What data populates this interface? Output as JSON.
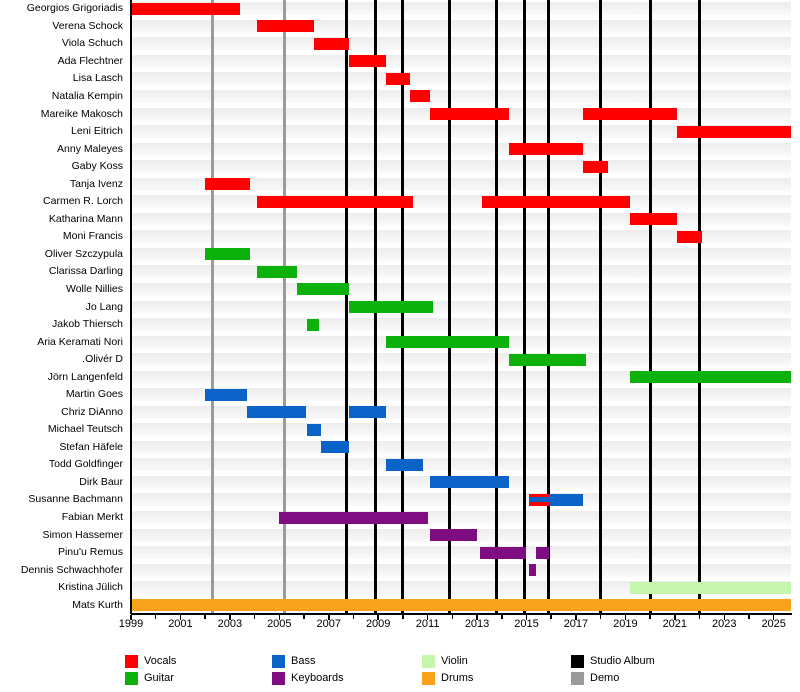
{
  "chart_data": {
    "type": "timeline",
    "description": "Band members timeline (gantt-style) with role-colored bars, studio album and demo release lines",
    "axis": {
      "start": 1999,
      "end": 2025.7,
      "tick_years": [
        1999,
        2001,
        2003,
        2005,
        2007,
        2009,
        2011,
        2013,
        2015,
        2017,
        2019,
        2021,
        2023,
        2025
      ],
      "minor_tick_step": 1
    },
    "colors": {
      "vocals": "#fe0000",
      "guitar": "#0cb10c",
      "bass": "#0b63c8",
      "keyboards": "#7e0d81",
      "violin": "#c6f5ae",
      "drums": "#f9a21b",
      "studio_album": "#000000",
      "demo": "#9b9b9b"
    },
    "legend": [
      {
        "label": "Vocals",
        "key": "vocals"
      },
      {
        "label": "Guitar",
        "key": "guitar"
      },
      {
        "label": "Bass",
        "key": "bass"
      },
      {
        "label": "Keyboards",
        "key": "keyboards"
      },
      {
        "label": "Violin",
        "key": "violin"
      },
      {
        "label": "Drums",
        "key": "drums"
      },
      {
        "label": "Studio Album",
        "key": "studio_album"
      },
      {
        "label": "Demo",
        "key": "demo"
      }
    ],
    "studio_albums": [
      2007.7,
      2008.9,
      2010.0,
      2011.9,
      2013.8,
      2014.9,
      2015.9,
      2018.0,
      2020.0,
      2022.0
    ],
    "demos": [
      2002.3,
      2005.2
    ],
    "members": [
      {
        "name": "Georgios Grigoriadis",
        "segments": [
          {
            "start": 1999.0,
            "end": 2003.4,
            "role": "vocals"
          }
        ]
      },
      {
        "name": "Verena Schock",
        "segments": [
          {
            "start": 2004.1,
            "end": 2006.4,
            "role": "vocals"
          }
        ]
      },
      {
        "name": "Viola Schuch",
        "segments": [
          {
            "start": 2006.4,
            "end": 2007.8,
            "role": "vocals"
          }
        ]
      },
      {
        "name": "Ada Flechtner",
        "segments": [
          {
            "start": 2007.8,
            "end": 2009.3,
            "role": "vocals"
          }
        ]
      },
      {
        "name": "Lisa Lasch",
        "segments": [
          {
            "start": 2009.3,
            "end": 2010.3,
            "role": "vocals"
          }
        ]
      },
      {
        "name": "Natalia Kempin",
        "segments": [
          {
            "start": 2010.3,
            "end": 2011.1,
            "role": "vocals"
          }
        ]
      },
      {
        "name": "Mareike Makosch",
        "segments": [
          {
            "start": 2011.1,
            "end": 2014.3,
            "role": "vocals"
          },
          {
            "start": 2017.3,
            "end": 2021.1,
            "role": "vocals"
          }
        ]
      },
      {
        "name": "Leni Eitrich",
        "segments": [
          {
            "start": 2021.1,
            "end": 2025.7,
            "role": "vocals"
          }
        ]
      },
      {
        "name": "Anny Maleyes",
        "segments": [
          {
            "start": 2014.3,
            "end": 2017.3,
            "role": "vocals"
          }
        ]
      },
      {
        "name": "Gaby Koss",
        "segments": [
          {
            "start": 2017.3,
            "end": 2018.3,
            "role": "vocals"
          }
        ]
      },
      {
        "name": "Tanja Ivenz",
        "segments": [
          {
            "start": 2002.0,
            "end": 2003.8,
            "role": "vocals"
          }
        ]
      },
      {
        "name": "Carmen R. Lorch",
        "segments": [
          {
            "start": 2004.1,
            "end": 2010.4,
            "role": "vocals"
          },
          {
            "start": 2013.2,
            "end": 2019.2,
            "role": "vocals"
          }
        ]
      },
      {
        "name": "Katharina Mann",
        "segments": [
          {
            "start": 2019.2,
            "end": 2021.1,
            "role": "vocals"
          }
        ]
      },
      {
        "name": "Moni Francis",
        "segments": [
          {
            "start": 2021.1,
            "end": 2022.1,
            "role": "vocals"
          }
        ]
      },
      {
        "name": "Oliver Szczypula",
        "segments": [
          {
            "start": 2002.0,
            "end": 2003.8,
            "role": "guitar"
          }
        ]
      },
      {
        "name": "Clarissa Darling",
        "segments": [
          {
            "start": 2004.1,
            "end": 2005.7,
            "role": "guitar"
          }
        ]
      },
      {
        "name": "Wolle Nillies",
        "segments": [
          {
            "start": 2005.7,
            "end": 2007.8,
            "role": "guitar"
          }
        ]
      },
      {
        "name": "Jo Lang",
        "segments": [
          {
            "start": 2007.8,
            "end": 2011.2,
            "role": "guitar"
          }
        ]
      },
      {
        "name": "Jakob Thiersch",
        "segments": [
          {
            "start": 2006.1,
            "end": 2006.6,
            "role": "guitar"
          }
        ]
      },
      {
        "name": "Aria Keramati Nori",
        "segments": [
          {
            "start": 2009.3,
            "end": 2014.3,
            "role": "guitar"
          }
        ]
      },
      {
        "name": "Olivér D.",
        "segments": [
          {
            "start": 2014.3,
            "end": 2017.4,
            "role": "guitar"
          }
        ]
      },
      {
        "name": "Jörn Langenfeld",
        "segments": [
          {
            "start": 2019.2,
            "end": 2025.7,
            "role": "guitar"
          }
        ]
      },
      {
        "name": "Martin Goes",
        "segments": [
          {
            "start": 2002.0,
            "end": 2003.7,
            "role": "bass"
          }
        ]
      },
      {
        "name": "Chriz DiAnno",
        "segments": [
          {
            "start": 2003.7,
            "end": 2006.1,
            "role": "bass"
          },
          {
            "start": 2007.8,
            "end": 2009.3,
            "role": "bass"
          }
        ]
      },
      {
        "name": "Michael Teutsch",
        "segments": [
          {
            "start": 2006.1,
            "end": 2006.7,
            "role": "bass"
          }
        ]
      },
      {
        "name": "Stefan Häfele",
        "segments": [
          {
            "start": 2006.7,
            "end": 2007.8,
            "role": "bass"
          }
        ]
      },
      {
        "name": "Todd Goldfinger",
        "segments": [
          {
            "start": 2009.3,
            "end": 2010.8,
            "role": "bass"
          }
        ]
      },
      {
        "name": "Dirk Baur",
        "segments": [
          {
            "start": 2011.1,
            "end": 2014.3,
            "role": "bass"
          }
        ]
      },
      {
        "name": "Susanne Bachmann",
        "segments": [
          {
            "start": 2015.1,
            "end": 2015.9,
            "role": "vocals",
            "overlay": "bass"
          },
          {
            "start": 2015.9,
            "end": 2017.3,
            "role": "bass"
          }
        ]
      },
      {
        "name": "Fabian Merkt",
        "segments": [
          {
            "start": 2005.0,
            "end": 2011.0,
            "role": "keyboards"
          }
        ]
      },
      {
        "name": "Simon Hassemer",
        "segments": [
          {
            "start": 2011.1,
            "end": 2013.0,
            "role": "keyboards"
          }
        ]
      },
      {
        "name": "Pinu'u Remus",
        "segments": [
          {
            "start": 2013.1,
            "end": 2015.0,
            "role": "keyboards"
          },
          {
            "start": 2015.4,
            "end": 2015.9,
            "role": "keyboards"
          }
        ]
      },
      {
        "name": "Dennis Schwachhofer",
        "segments": [
          {
            "start": 2015.1,
            "end": 2015.4,
            "role": "keyboards"
          }
        ]
      },
      {
        "name": "Kristina Jülich",
        "segments": [
          {
            "start": 2019.2,
            "end": 2025.7,
            "role": "violin"
          }
        ]
      },
      {
        "name": "Mats Kurth",
        "segments": [
          {
            "start": 1999.0,
            "end": 2025.7,
            "role": "drums"
          }
        ]
      }
    ]
  }
}
